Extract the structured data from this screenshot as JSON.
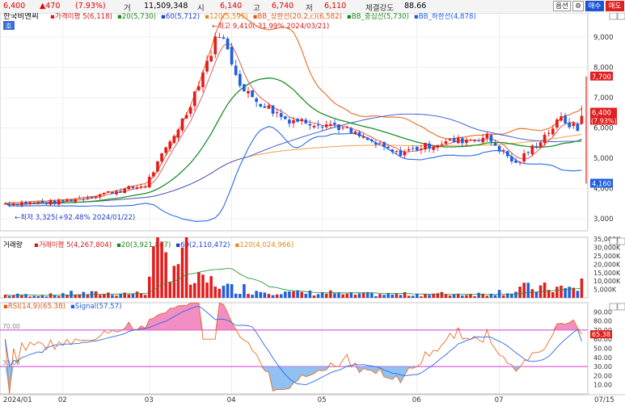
{
  "header": {
    "price": "6,400",
    "change": "▲470",
    "change_pct": "(7.93%)",
    "vol_label": "거",
    "volume": "11,509,348",
    "open_label": "시",
    "open": "6,140",
    "high_label": "고",
    "high": "6,740",
    "low_label": "저",
    "low": "6,110",
    "strength_label": "체결강도",
    "strength": "88.66",
    "btn_option": "옵션",
    "btn_gear": "⚙",
    "btn_buy": "매수",
    "btn_sell": "매도"
  },
  "price_panel": {
    "stock_name": "한국비엔씨",
    "badge": "호",
    "legend": [
      {
        "text": "가격이평 5(6,118)",
        "color": "#d01c1c"
      },
      {
        "text": "20(5,730)",
        "color": "#1a8a1a"
      },
      {
        "text": "60(5,712)",
        "color": "#2040d0"
      },
      {
        "text": "120(5,595)",
        "color": "#e08a1a"
      },
      {
        "text": "BB_상한선(20,2,c)(6,582)",
        "color": "#e05a1a"
      },
      {
        "text": "BB_중심선(5,730)",
        "color": "#1a8a1a"
      },
      {
        "text": "BB_하한선(4,878)",
        "color": "#2060e0"
      }
    ],
    "high_note": "←최고 9,410(-31.99% 2024/03/21)",
    "low_note": "←최저 3,325(+92.48% 2024/01/22)",
    "ylabels": [
      "9,000",
      "8,000",
      "7,000",
      "6,000",
      "5,000",
      "4,000",
      "3,000"
    ],
    "tag_high": "7,700",
    "tag_price": "6,400",
    "tag_pct": "(7.93%)",
    "tag_low": "4,160"
  },
  "volume_panel": {
    "title": "거래량",
    "legend": [
      {
        "text": "거래이평 5(4,267,804)",
        "color": "#d01c1c"
      },
      {
        "text": "20(3,921,847)",
        "color": "#1a8a1a"
      },
      {
        "text": "60(2,110,472)",
        "color": "#2040d0"
      },
      {
        "text": "120(4,024,966)",
        "color": "#e08a1a"
      }
    ],
    "ylabels": [
      "35,000K",
      "30,000K",
      "25,000K",
      "20,000K",
      "15,000K",
      "10,000K",
      "5,000K"
    ]
  },
  "rsi_panel": {
    "legend": [
      {
        "text": "RSI(14,9)(65.38)",
        "color": "#e05a1a"
      },
      {
        "text": "Signal(57.57)",
        "color": "#2060e0"
      }
    ],
    "upper_level": "70.00",
    "lower_level": "30.00",
    "ylabels": [
      "90.00",
      "80.00",
      "70.00",
      "60.00",
      "50.00",
      "40.00",
      "30.00",
      "20.00",
      "10.00"
    ],
    "tag_value": "65.38"
  },
  "x_axis": {
    "labels": [
      "2024/01",
      "02",
      "03",
      "04",
      "05",
      "06",
      "07"
    ],
    "right_label": "07/15"
  },
  "chart_data": {
    "type": "candlestick",
    "title": "한국비엔씨",
    "unit": "KRW",
    "ylim": [
      2600,
      9800
    ],
    "volume_ylim": [
      0,
      36000000
    ],
    "rsi_ylim": [
      0,
      100
    ],
    "segments": [
      {
        "days": 14,
        "start": 3500,
        "end": 3550,
        "vol": 1600000
      },
      {
        "days": 21,
        "start": 3550,
        "end": 4100,
        "vol": 2500000
      },
      {
        "days": 10,
        "start": 4100,
        "end": 6500,
        "vol": 22000000
      },
      {
        "days": 8,
        "start": 6500,
        "end": 9200,
        "vol": 9000000
      },
      {
        "days": 6,
        "start": 9200,
        "end": 7200,
        "vol": 5500000
      },
      {
        "days": 10,
        "start": 7200,
        "end": 6300,
        "vol": 4000000
      },
      {
        "days": 12,
        "start": 6300,
        "end": 6100,
        "vol": 2800000
      },
      {
        "days": 15,
        "start": 6100,
        "end": 5150,
        "vol": 2000000
      },
      {
        "days": 10,
        "start": 5150,
        "end": 5500,
        "vol": 2000000
      },
      {
        "days": 12,
        "start": 5500,
        "end": 5700,
        "vol": 2200000
      },
      {
        "days": 7,
        "start": 5700,
        "end": 4800,
        "vol": 3500000
      },
      {
        "days": 11,
        "start": 4800,
        "end": 6300,
        "vol": 5500000
      },
      {
        "days": 4,
        "start": 6300,
        "end": 5950,
        "vol": 5000000
      }
    ],
    "last": {
      "open": 6140,
      "high": 6740,
      "low": 6110,
      "close": 6400,
      "volume": 11509348
    },
    "high_point": {
      "value": 9410,
      "date": "2024/03/21"
    },
    "low_point": {
      "value": 3325,
      "date": "2024/01/22"
    },
    "moving_averages": {
      "ma5": 6118,
      "ma20": 5730,
      "ma60": 5712,
      "ma120": 5595
    },
    "bollinger": {
      "upper": 6582,
      "middle": 5730,
      "lower": 4878
    },
    "rsi": {
      "value": 65.38,
      "signal": 57.57,
      "upper": 70,
      "lower": 30
    }
  }
}
